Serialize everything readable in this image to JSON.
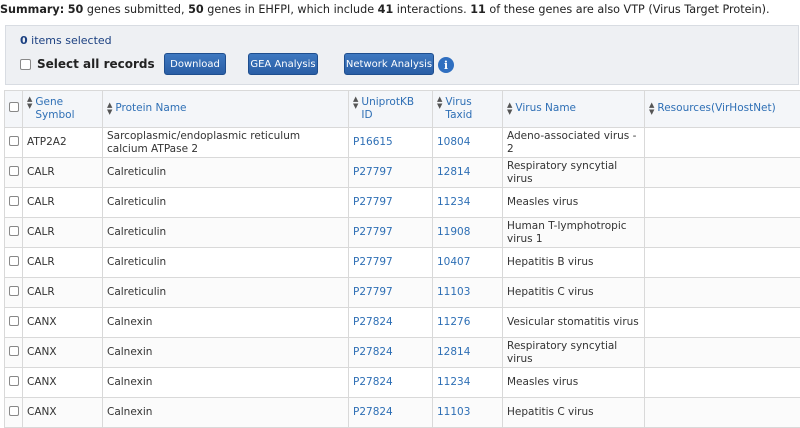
{
  "summary": {
    "label": "Summary",
    "submitted": "50",
    "text1": " genes submitted, ",
    "in_ehfpi": "50",
    "text2": " genes in EHFPI, which include ",
    "interactions": "41",
    "text3": " interactions. ",
    "vtp": "11",
    "text4": " of these genes are also VTP (Virus Target Protein)."
  },
  "toolbar": {
    "selected_count": "0",
    "selected_text": " items selected",
    "select_all_label": "Select all records",
    "download_label": "Download",
    "gea_label": "GEA Analysis",
    "network_label": "Network Analysis",
    "info_icon": "info-icon"
  },
  "table": {
    "headers": {
      "gene": "Gene Symbol",
      "protein": "Protein Name",
      "uniprot": "UniprotKB ID",
      "taxid": "Virus Taxid",
      "virus": "Virus Name",
      "resources": "Resources(VirHostNet)"
    },
    "rows": [
      {
        "gene": "ATP2A2",
        "protein": "Sarcoplasmic/endoplasmic reticulum calcium ATPase 2",
        "uniprot": "P16615",
        "taxid": "10804",
        "virus": "Adeno-associated virus - 2"
      },
      {
        "gene": "CALR",
        "protein": "Calreticulin",
        "uniprot": "P27797",
        "taxid": "12814",
        "virus": "Respiratory syncytial virus"
      },
      {
        "gene": "CALR",
        "protein": "Calreticulin",
        "uniprot": "P27797",
        "taxid": "11234",
        "virus": "Measles virus"
      },
      {
        "gene": "CALR",
        "protein": "Calreticulin",
        "uniprot": "P27797",
        "taxid": "11908",
        "virus": "Human T-lymphotropic virus 1"
      },
      {
        "gene": "CALR",
        "protein": "Calreticulin",
        "uniprot": "P27797",
        "taxid": "10407",
        "virus": "Hepatitis B virus"
      },
      {
        "gene": "CALR",
        "protein": "Calreticulin",
        "uniprot": "P27797",
        "taxid": "11103",
        "virus": "Hepatitis C virus"
      },
      {
        "gene": "CANX",
        "protein": "Calnexin",
        "uniprot": "P27824",
        "taxid": "11276",
        "virus": "Vesicular stomatitis virus"
      },
      {
        "gene": "CANX",
        "protein": "Calnexin",
        "uniprot": "P27824",
        "taxid": "12814",
        "virus": "Respiratory syncytial virus"
      },
      {
        "gene": "CANX",
        "protein": "Calnexin",
        "uniprot": "P27824",
        "taxid": "11234",
        "virus": "Measles virus"
      },
      {
        "gene": "CANX",
        "protein": "Calnexin",
        "uniprot": "P27824",
        "taxid": "11103",
        "virus": "Hepatitis C virus"
      }
    ]
  },
  "colors": {
    "link": "#2e6fb5",
    "button": "#2a5ea5",
    "panel": "#eef0f3"
  }
}
